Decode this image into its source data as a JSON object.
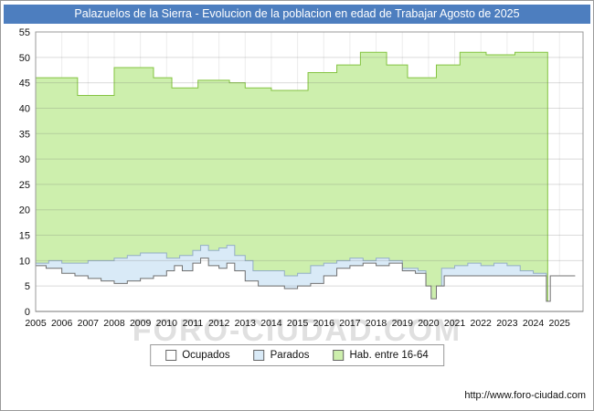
{
  "title": "Palazuelos de la Sierra - Evolucion de la poblacion en edad de Trabajar Agosto de 2025",
  "watermark": "FORO-CIUDAD.COM",
  "footer": {
    "url": "http://www.foro-ciudad.com"
  },
  "colors": {
    "title_bar": "#4d7ebf",
    "title_text": "#ffffff",
    "grid": "#bdbdbd",
    "axis": "#777777",
    "plot_border": "#999999"
  },
  "chart_data": {
    "type": "area",
    "title": "Palazuelos de la Sierra - Evolucion de la poblacion en edad de Trabajar Agosto de 2025",
    "xlabel": "",
    "ylabel": "",
    "ylim": [
      0,
      55
    ],
    "y_step": 5,
    "x_domain": [
      2005,
      2025.9
    ],
    "x_ticks": [
      2005,
      2006,
      2007,
      2008,
      2009,
      2010,
      2011,
      2012,
      2013,
      2014,
      2015,
      2016,
      2017,
      2018,
      2019,
      2020,
      2021,
      2022,
      2023,
      2024,
      2025
    ],
    "grid": true,
    "legend_position": "bottom",
    "legend": [
      {
        "label": "Ocupados",
        "color": "#ffffff"
      },
      {
        "label": "Parados",
        "color": "#d9eaf7"
      },
      {
        "label": "Hab. entre 16-64",
        "color": "#cdefad"
      }
    ],
    "series": [
      {
        "name": "Hab. entre 16-64",
        "fill": "#cdefad",
        "stroke": "#84c341",
        "points": [
          [
            2005,
            46
          ],
          [
            2006.6,
            42.5
          ],
          [
            2008,
            48
          ],
          [
            2009.5,
            46
          ],
          [
            2010.2,
            44
          ],
          [
            2011.2,
            45.5
          ],
          [
            2012.4,
            45
          ],
          [
            2013,
            44
          ],
          [
            2014,
            43.5
          ],
          [
            2015.4,
            47
          ],
          [
            2016.5,
            48.5
          ],
          [
            2017.4,
            51
          ],
          [
            2018.4,
            48.5
          ],
          [
            2019.2,
            46
          ],
          [
            2020.3,
            48.5
          ],
          [
            2021.2,
            51
          ],
          [
            2022.2,
            50.5
          ],
          [
            2023.3,
            51
          ],
          [
            2024.5,
            51
          ],
          [
            2024.55,
            0
          ]
        ]
      },
      {
        "name": "Parados",
        "fill": "#d9eaf7",
        "stroke": "#94aec7",
        "points": [
          [
            2005,
            9.5
          ],
          [
            2005.5,
            10
          ],
          [
            2006,
            9.5
          ],
          [
            2007,
            10
          ],
          [
            2008,
            10.5
          ],
          [
            2008.5,
            11
          ],
          [
            2009,
            11.5
          ],
          [
            2010,
            10.5
          ],
          [
            2010.5,
            11
          ],
          [
            2011,
            12
          ],
          [
            2011.3,
            13
          ],
          [
            2011.6,
            12
          ],
          [
            2012,
            12.5
          ],
          [
            2012.3,
            13
          ],
          [
            2012.6,
            11
          ],
          [
            2013,
            10
          ],
          [
            2013.3,
            8
          ],
          [
            2014,
            8
          ],
          [
            2014.5,
            7
          ],
          [
            2015,
            7.5
          ],
          [
            2015.5,
            9
          ],
          [
            2016,
            9.5
          ],
          [
            2016.5,
            10
          ],
          [
            2017,
            10.5
          ],
          [
            2017.5,
            10
          ],
          [
            2018,
            10.5
          ],
          [
            2018.5,
            10
          ],
          [
            2019,
            8.5
          ],
          [
            2019.6,
            8
          ],
          [
            2019.9,
            4
          ],
          [
            2020.1,
            0.5
          ],
          [
            2020.3,
            4
          ],
          [
            2020.5,
            8.5
          ],
          [
            2021,
            9
          ],
          [
            2021.5,
            9.5
          ],
          [
            2022,
            9
          ],
          [
            2022.5,
            9.5
          ],
          [
            2023,
            9
          ],
          [
            2023.5,
            8
          ],
          [
            2024,
            7.5
          ],
          [
            2024.5,
            7
          ]
        ]
      },
      {
        "name": "Ocupados",
        "fill": "#ffffff",
        "stroke": "#707070",
        "points": [
          [
            2005,
            9
          ],
          [
            2005.4,
            8.5
          ],
          [
            2006,
            7.5
          ],
          [
            2006.5,
            7
          ],
          [
            2007,
            6.5
          ],
          [
            2007.5,
            6
          ],
          [
            2008,
            5.5
          ],
          [
            2008.5,
            6
          ],
          [
            2009,
            6.5
          ],
          [
            2009.5,
            7
          ],
          [
            2010,
            8
          ],
          [
            2010.3,
            9
          ],
          [
            2010.6,
            8
          ],
          [
            2011,
            9.5
          ],
          [
            2011.3,
            10.5
          ],
          [
            2011.6,
            9
          ],
          [
            2012,
            8.5
          ],
          [
            2012.3,
            9.5
          ],
          [
            2012.6,
            8
          ],
          [
            2013,
            6
          ],
          [
            2013.5,
            5
          ],
          [
            2014,
            5
          ],
          [
            2014.5,
            4.5
          ],
          [
            2015,
            5
          ],
          [
            2015.5,
            5.5
          ],
          [
            2016,
            7
          ],
          [
            2016.5,
            8.5
          ],
          [
            2017,
            9
          ],
          [
            2017.5,
            9.5
          ],
          [
            2018,
            9
          ],
          [
            2018.5,
            9.5
          ],
          [
            2019,
            8
          ],
          [
            2019.5,
            7.5
          ],
          [
            2019.9,
            5
          ],
          [
            2020.1,
            2.5
          ],
          [
            2020.3,
            5
          ],
          [
            2020.6,
            7
          ],
          [
            2021,
            7
          ],
          [
            2022,
            7
          ],
          [
            2023,
            7
          ],
          [
            2024,
            7
          ],
          [
            2024.4,
            7
          ],
          [
            2024.5,
            2
          ],
          [
            2024.65,
            7
          ],
          [
            2025.6,
            7
          ]
        ]
      }
    ]
  }
}
